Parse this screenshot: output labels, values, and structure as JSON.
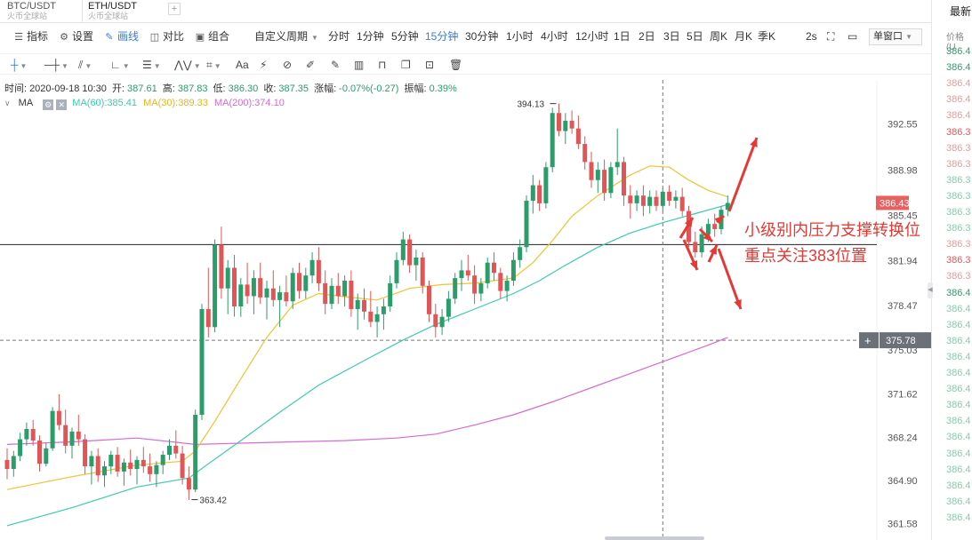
{
  "tabs": [
    {
      "pair": "BTC/USDT",
      "source": "火币全球站"
    },
    {
      "pair": "ETH/USDT",
      "source": "火币全球站"
    }
  ],
  "tab_add": "+",
  "toolbar": {
    "indicator": "指标",
    "settings": "设置",
    "draw": "画线",
    "compare": "对比",
    "combine": "组合",
    "custom_period": "自定义周期",
    "periods": [
      "分时",
      "1分钟",
      "5分钟",
      "15分钟",
      "30分钟",
      "1小时",
      "4小时",
      "12小时",
      "1日",
      "2日",
      "3日",
      "5日",
      "周K",
      "月K",
      "季K"
    ],
    "active_period": "15分钟",
    "refresh": "2s",
    "single_window": "单窗口"
  },
  "info": {
    "time_label": "时间:",
    "time": "2020-09-18 10:30",
    "open_label": "开:",
    "open": "387.61",
    "high_label": "高:",
    "high": "387.83",
    "low_label": "低:",
    "low": "386.30",
    "close_label": "收:",
    "close": "387.35",
    "change_label": "涨幅:",
    "change": "-0.07%(-0.27)",
    "amp_label": "振幅:",
    "amp": "0.39%"
  },
  "ma": {
    "label": "MA",
    "ma60": "MA(60):385.41",
    "ma30": "MA(30):389.33",
    "ma200": "MA(200):374.10"
  },
  "side_panel": {
    "header": "最新",
    "sub": "价格(U",
    "rows": [
      {
        "text": "386.4",
        "color": "#2a9d6a"
      },
      {
        "text": "386.4",
        "color": "#2a9d6a"
      },
      {
        "text": "386.4",
        "color": "#e79a9a"
      },
      {
        "text": "386.4",
        "color": "#e79a9a"
      },
      {
        "text": "386.4",
        "color": "#e79a9a"
      },
      {
        "text": "386.3",
        "color": "#e05656"
      },
      {
        "text": "386.3",
        "color": "#e79a9a"
      },
      {
        "text": "386.3",
        "color": "#e79a9a"
      },
      {
        "text": "386.3",
        "color": "#7fcfa8"
      },
      {
        "text": "386.3",
        "color": "#7fcfa8"
      },
      {
        "text": "386.3",
        "color": "#7fcfa8"
      },
      {
        "text": "386.3",
        "color": "#7fcfa8"
      },
      {
        "text": "386.3",
        "color": "#e79a9a"
      },
      {
        "text": "386.3",
        "color": "#e05656"
      },
      {
        "text": "386.3",
        "color": "#e79a9a"
      },
      {
        "text": "386.4",
        "color": "#2a9d6a"
      },
      {
        "text": "386.4",
        "color": "#7fcfa8"
      },
      {
        "text": "386.4",
        "color": "#7fcfa8"
      },
      {
        "text": "386.4",
        "color": "#7fcfa8"
      },
      {
        "text": "386.4",
        "color": "#7fcfa8"
      },
      {
        "text": "386.4",
        "color": "#7fcfa8"
      },
      {
        "text": "386.4",
        "color": "#7fcfa8"
      },
      {
        "text": "386.4",
        "color": "#7fcfa8"
      },
      {
        "text": "386.4",
        "color": "#7fcfa8"
      },
      {
        "text": "386.4",
        "color": "#7fcfa8"
      },
      {
        "text": "386.4",
        "color": "#7fcfa8"
      },
      {
        "text": "386.4",
        "color": "#7fcfa8"
      },
      {
        "text": "386.4",
        "color": "#7fcfa8"
      },
      {
        "text": "386.4",
        "color": "#7fcfa8"
      },
      {
        "text": "386.4",
        "color": "#7fcfa8"
      }
    ]
  },
  "annotation": {
    "line1": "小级别内压力支撑转换位",
    "line2": "重点关注383位置"
  },
  "colors": {
    "up": "#2a9d6a",
    "down": "#e05656",
    "ma60": "#3ec9b0",
    "ma30": "#f2c230",
    "ma200": "#d56bd0",
    "annotation": "#e53935",
    "accent": "#3a7bd5"
  },
  "chart_data": {
    "type": "candlestick",
    "y_ticks": [
      392.55,
      388.98,
      385.45,
      381.94,
      378.47,
      375.03,
      371.62,
      368.24,
      364.9,
      361.58
    ],
    "ylim": [
      360.5,
      395.7
    ],
    "last_price": "386.43",
    "crosshair_price": "375.78",
    "crosshair_plus": "+",
    "high_marker": "394.13",
    "low_marker": "363.42",
    "horizontal_line": 383.2,
    "candles": [
      [
        366.5,
        367.4,
        365.0,
        365.8
      ],
      [
        365.8,
        367.2,
        365.2,
        366.8
      ],
      [
        366.8,
        368.6,
        366.4,
        368.1
      ],
      [
        368.1,
        369.4,
        367.6,
        368.9
      ],
      [
        368.9,
        369.6,
        367.6,
        368.0
      ],
      [
        368.0,
        368.4,
        365.6,
        366.2
      ],
      [
        366.2,
        367.8,
        366.0,
        367.4
      ],
      [
        367.4,
        370.6,
        367.2,
        370.3
      ],
      [
        370.3,
        371.6,
        368.8,
        369.2
      ],
      [
        369.2,
        370.4,
        367.0,
        367.6
      ],
      [
        367.6,
        369.0,
        366.6,
        368.7
      ],
      [
        368.7,
        370.0,
        367.6,
        368.1
      ],
      [
        368.1,
        368.5,
        365.4,
        366.0
      ],
      [
        366.0,
        367.2,
        364.6,
        366.8
      ],
      [
        366.8,
        367.4,
        364.8,
        365.3
      ],
      [
        365.3,
        366.4,
        364.4,
        366.0
      ],
      [
        366.0,
        367.2,
        365.4,
        366.9
      ],
      [
        366.9,
        367.5,
        365.2,
        365.6
      ],
      [
        365.6,
        366.6,
        364.5,
        366.3
      ],
      [
        366.3,
        367.3,
        365.3,
        365.8
      ],
      [
        365.8,
        366.8,
        364.6,
        366.5
      ],
      [
        366.5,
        367.5,
        365.5,
        366.0
      ],
      [
        366.0,
        367.0,
        364.8,
        365.4
      ],
      [
        365.4,
        366.4,
        364.4,
        366.1
      ],
      [
        366.1,
        367.2,
        365.4,
        366.9
      ],
      [
        366.9,
        368.1,
        366.5,
        367.6
      ],
      [
        367.6,
        368.8,
        366.6,
        367.0
      ],
      [
        367.0,
        367.6,
        364.6,
        365.1
      ],
      [
        365.1,
        366.0,
        363.4,
        364.2
      ],
      [
        364.2,
        370.4,
        364.0,
        370.0
      ],
      [
        370.0,
        378.6,
        369.6,
        378.2
      ],
      [
        378.2,
        381.4,
        376.0,
        376.8
      ],
      [
        376.8,
        383.6,
        376.4,
        383.2
      ],
      [
        383.2,
        384.6,
        379.0,
        379.8
      ],
      [
        379.8,
        382.0,
        377.8,
        381.4
      ],
      [
        381.4,
        382.4,
        377.6,
        378.4
      ],
      [
        378.4,
        380.6,
        377.6,
        380.1
      ],
      [
        380.1,
        381.8,
        378.6,
        379.2
      ],
      [
        379.2,
        381.2,
        377.8,
        380.6
      ],
      [
        380.6,
        381.8,
        378.6,
        379.1
      ],
      [
        379.1,
        380.4,
        377.4,
        379.8
      ],
      [
        379.8,
        381.2,
        378.4,
        378.9
      ],
      [
        378.9,
        380.0,
        376.8,
        379.5
      ],
      [
        379.5,
        380.8,
        378.4,
        378.8
      ],
      [
        378.8,
        381.4,
        378.2,
        381.0
      ],
      [
        381.0,
        381.8,
        379.0,
        379.6
      ],
      [
        379.6,
        381.4,
        379.0,
        380.8
      ],
      [
        380.8,
        382.6,
        380.2,
        382.0
      ],
      [
        382.0,
        383.0,
        379.6,
        380.2
      ],
      [
        380.2,
        381.2,
        377.8,
        378.6
      ],
      [
        378.6,
        380.6,
        378.2,
        380.0
      ],
      [
        380.0,
        381.0,
        378.6,
        379.2
      ],
      [
        379.2,
        380.8,
        378.4,
        380.4
      ],
      [
        380.4,
        381.2,
        377.6,
        378.2
      ],
      [
        378.2,
        379.4,
        376.6,
        378.9
      ],
      [
        378.9,
        379.8,
        377.4,
        378.0
      ],
      [
        378.0,
        379.6,
        376.8,
        377.2
      ],
      [
        377.2,
        378.4,
        376.0,
        377.8
      ],
      [
        377.8,
        379.0,
        376.6,
        378.4
      ],
      [
        378.4,
        380.8,
        378.0,
        380.2
      ],
      [
        380.2,
        382.6,
        379.8,
        382.0
      ],
      [
        382.0,
        384.2,
        381.6,
        383.6
      ],
      [
        383.6,
        384.0,
        381.0,
        381.6
      ],
      [
        381.6,
        382.8,
        380.4,
        382.2
      ],
      [
        382.2,
        382.6,
        379.4,
        380.0
      ],
      [
        380.0,
        380.4,
        377.2,
        377.8
      ],
      [
        377.8,
        378.6,
        376.0,
        376.8
      ],
      [
        376.8,
        378.2,
        376.2,
        377.6
      ],
      [
        377.6,
        379.6,
        377.2,
        379.0
      ],
      [
        379.0,
        381.0,
        378.6,
        380.6
      ],
      [
        380.6,
        382.0,
        379.6,
        381.2
      ],
      [
        381.2,
        382.4,
        380.4,
        380.8
      ],
      [
        380.8,
        381.6,
        378.6,
        379.4
      ],
      [
        379.4,
        380.6,
        378.8,
        380.2
      ],
      [
        380.2,
        382.2,
        379.8,
        381.8
      ],
      [
        381.8,
        382.6,
        380.4,
        381.0
      ],
      [
        381.0,
        381.4,
        379.0,
        379.6
      ],
      [
        379.6,
        380.8,
        378.8,
        380.4
      ],
      [
        380.4,
        382.6,
        380.0,
        382.0
      ],
      [
        382.0,
        383.6,
        381.4,
        383.0
      ],
      [
        383.0,
        387.0,
        382.6,
        386.6
      ],
      [
        386.6,
        388.6,
        385.6,
        387.8
      ],
      [
        387.8,
        388.2,
        385.8,
        386.4
      ],
      [
        386.4,
        389.6,
        386.0,
        389.2
      ],
      [
        389.2,
        393.8,
        388.8,
        393.4
      ],
      [
        393.4,
        394.13,
        391.6,
        392.0
      ],
      [
        392.0,
        393.4,
        391.0,
        392.8
      ],
      [
        392.8,
        393.6,
        391.8,
        392.2
      ],
      [
        392.2,
        393.2,
        390.6,
        391.0
      ],
      [
        391.0,
        391.6,
        389.0,
        389.6
      ],
      [
        389.6,
        390.4,
        387.6,
        388.2
      ],
      [
        388.2,
        389.6,
        387.2,
        389.0
      ],
      [
        389.0,
        389.8,
        386.6,
        387.2
      ],
      [
        387.2,
        389.6,
        386.8,
        389.2
      ],
      [
        389.2,
        392.2,
        388.6,
        389.6
      ],
      [
        389.6,
        390.0,
        386.2,
        387.0
      ],
      [
        387.0,
        387.8,
        385.2,
        386.4
      ],
      [
        386.4,
        387.4,
        385.8,
        387.0
      ],
      [
        387.0,
        387.8,
        385.4,
        386.2
      ],
      [
        386.2,
        387.4,
        385.6,
        386.9
      ],
      [
        386.9,
        387.4,
        385.8,
        386.2
      ],
      [
        386.2,
        387.6,
        385.8,
        387.3
      ],
      [
        387.3,
        387.8,
        386.2,
        386.6
      ],
      [
        386.6,
        387.4,
        386.0,
        386.9
      ],
      [
        386.9,
        387.6,
        385.4,
        385.8
      ],
      [
        385.8,
        386.2,
        383.0,
        383.4
      ],
      [
        383.4,
        384.2,
        382.2,
        382.6
      ],
      [
        382.6,
        384.6,
        382.2,
        384.0
      ],
      [
        384.0,
        385.2,
        383.4,
        384.8
      ],
      [
        384.8,
        385.6,
        383.8,
        384.4
      ],
      [
        384.4,
        386.2,
        384.0,
        385.9
      ],
      [
        385.9,
        387.0,
        385.4,
        386.43
      ]
    ],
    "ma30": [
      [
        0,
        364.2
      ],
      [
        10,
        365.2
      ],
      [
        20,
        366.1
      ],
      [
        27,
        366.4
      ],
      [
        29,
        367.2
      ],
      [
        32,
        369.5
      ],
      [
        36,
        372.8
      ],
      [
        40,
        376.0
      ],
      [
        44,
        378.5
      ],
      [
        48,
        379.4
      ],
      [
        53,
        379.1
      ],
      [
        57,
        378.9
      ],
      [
        62,
        379.8
      ],
      [
        67,
        380.1
      ],
      [
        72,
        380.2
      ],
      [
        78,
        380.6
      ],
      [
        81,
        381.8
      ],
      [
        84,
        383.5
      ],
      [
        87,
        385.4
      ],
      [
        91,
        387.0
      ],
      [
        96,
        388.6
      ],
      [
        99,
        389.3
      ],
      [
        102,
        389.2
      ],
      [
        105,
        388.2
      ],
      [
        108,
        387.4
      ],
      [
        111,
        386.9
      ]
    ],
    "ma60": [
      [
        0,
        361.4
      ],
      [
        10,
        362.8
      ],
      [
        20,
        364.4
      ],
      [
        28,
        365.1
      ],
      [
        31,
        366.2
      ],
      [
        36,
        368.0
      ],
      [
        42,
        370.2
      ],
      [
        48,
        372.3
      ],
      [
        55,
        374.2
      ],
      [
        61,
        375.8
      ],
      [
        66,
        377.0
      ],
      [
        72,
        378.2
      ],
      [
        78,
        379.4
      ],
      [
        82,
        380.4
      ],
      [
        86,
        381.6
      ],
      [
        91,
        383.0
      ],
      [
        96,
        384.1
      ],
      [
        101,
        384.9
      ],
      [
        106,
        385.6
      ],
      [
        111,
        386.3
      ]
    ],
    "ma200": [
      [
        0,
        367.7
      ],
      [
        10,
        367.9
      ],
      [
        20,
        368.2
      ],
      [
        29,
        367.7
      ],
      [
        36,
        367.8
      ],
      [
        44,
        367.9
      ],
      [
        52,
        368.0
      ],
      [
        60,
        368.2
      ],
      [
        66,
        368.5
      ],
      [
        72,
        369.2
      ],
      [
        78,
        370.0
      ],
      [
        84,
        371.0
      ],
      [
        90,
        372.1
      ],
      [
        96,
        373.2
      ],
      [
        102,
        374.3
      ],
      [
        108,
        375.4
      ],
      [
        111,
        376.0
      ]
    ]
  }
}
